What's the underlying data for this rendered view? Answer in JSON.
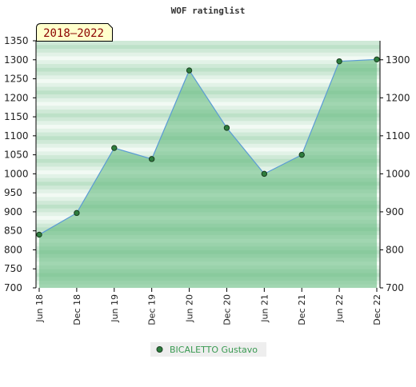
{
  "chart_data": {
    "type": "area",
    "title": "WOF ratinglist",
    "period_label": "2018–2022",
    "categories": [
      "Jun 18",
      "Dec 18",
      "Jun 19",
      "Dec 19",
      "Jun 20",
      "Dec 20",
      "Jun 21",
      "Dec 21",
      "Jun 22",
      "Dec 22"
    ],
    "series": [
      {
        "name": "BICALETTO Gustavo",
        "values": [
          840,
          897,
          1068,
          1039,
          1272,
          1121,
          1000,
          1050,
          1296,
          1301
        ]
      }
    ],
    "ylim": [
      700,
      1350
    ],
    "left_ticks": [
      700,
      750,
      800,
      850,
      900,
      950,
      1000,
      1050,
      1100,
      1150,
      1200,
      1250,
      1300,
      1350
    ],
    "right_ticks": [
      700,
      800,
      900,
      1000,
      1100,
      1200,
      1300
    ],
    "legend_position": "bottom-center",
    "colors": {
      "area_fill": "#5fb87a",
      "line": "#5b9bd5",
      "marker": "#2e7d3e",
      "band_light": "#e6f4ea",
      "band_dark": "#b7dfc3",
      "period_bg": "#ffffcc"
    }
  }
}
